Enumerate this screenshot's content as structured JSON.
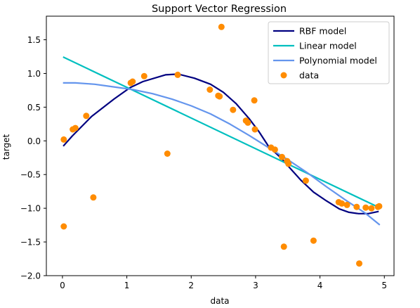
{
  "chart_data": {
    "type": "scatter",
    "title": "Support Vector Regression",
    "xlabel": "data",
    "ylabel": "target",
    "xlim": [
      -0.25,
      5.15
    ],
    "ylim": [
      -2.0,
      1.85
    ],
    "xticks": [
      0,
      1,
      2,
      3,
      4,
      5
    ],
    "yticks": [
      -2.0,
      -1.5,
      -1.0,
      -0.5,
      0.0,
      0.5,
      1.0,
      1.5
    ],
    "ytick_labels": [
      "−2.0",
      "−1.5",
      "−1.0",
      "−0.5",
      "0.0",
      "0.5",
      "1.0",
      "1.5"
    ],
    "xtick_labels": [
      "0",
      "1",
      "2",
      "3",
      "4",
      "5"
    ],
    "grid": false,
    "legend_position": "top-right",
    "series": [
      {
        "name": "RBF model",
        "kind": "line",
        "color": "#000080",
        "x": [
          0.02,
          0.15,
          0.45,
          0.8,
          1.05,
          1.25,
          1.6,
          1.8,
          2.05,
          2.3,
          2.5,
          2.7,
          2.9,
          3.05,
          3.2,
          3.4,
          3.55,
          3.7,
          3.9,
          4.1,
          4.3,
          4.45,
          4.6,
          4.75,
          4.9
        ],
        "y": [
          -0.07,
          0.07,
          0.36,
          0.62,
          0.79,
          0.88,
          0.98,
          0.99,
          0.93,
          0.84,
          0.72,
          0.55,
          0.33,
          0.14,
          -0.08,
          -0.26,
          -0.42,
          -0.58,
          -0.76,
          -0.89,
          -1.01,
          -1.06,
          -1.08,
          -1.08,
          -1.05
        ]
      },
      {
        "name": "Linear model",
        "kind": "line",
        "color": "#00bfbf",
        "x": [
          0.02,
          4.92
        ],
        "y": [
          1.24,
          -0.99
        ]
      },
      {
        "name": "Polynomial model",
        "kind": "line",
        "color": "#6495ed",
        "x": [
          0.02,
          0.2,
          0.5,
          0.8,
          1.1,
          1.4,
          1.7,
          2.0,
          2.3,
          2.6,
          2.9,
          3.2,
          3.5,
          3.8,
          4.1,
          4.4,
          4.7,
          4.92
        ],
        "y": [
          0.86,
          0.86,
          0.84,
          0.8,
          0.76,
          0.7,
          0.62,
          0.52,
          0.4,
          0.25,
          0.08,
          -0.1,
          -0.28,
          -0.47,
          -0.68,
          -0.88,
          -1.07,
          -1.24
        ]
      },
      {
        "name": "data",
        "kind": "scatter",
        "color": "#ff8c00",
        "x": [
          0.02,
          0.02,
          0.16,
          0.2,
          0.37,
          0.48,
          1.06,
          1.09,
          1.27,
          1.63,
          1.79,
          2.29,
          2.42,
          2.44,
          2.47,
          2.65,
          2.85,
          2.88,
          2.98,
          2.99,
          3.24,
          3.3,
          3.41,
          3.44,
          3.49,
          3.51,
          3.78,
          3.9,
          4.29,
          4.34,
          4.42,
          4.57,
          4.61,
          4.71,
          4.8,
          4.9,
          4.92
        ],
        "y": [
          0.02,
          -1.27,
          0.17,
          0.19,
          0.37,
          -0.84,
          0.86,
          0.88,
          0.96,
          -0.19,
          0.98,
          0.76,
          0.67,
          0.66,
          1.69,
          0.46,
          0.3,
          0.27,
          0.6,
          0.17,
          -0.1,
          -0.13,
          -0.24,
          -1.57,
          -0.3,
          -0.34,
          -0.59,
          -1.48,
          -0.91,
          -0.93,
          -0.95,
          -0.98,
          -1.82,
          -0.99,
          -1.0,
          -0.98,
          -0.97
        ]
      }
    ]
  }
}
